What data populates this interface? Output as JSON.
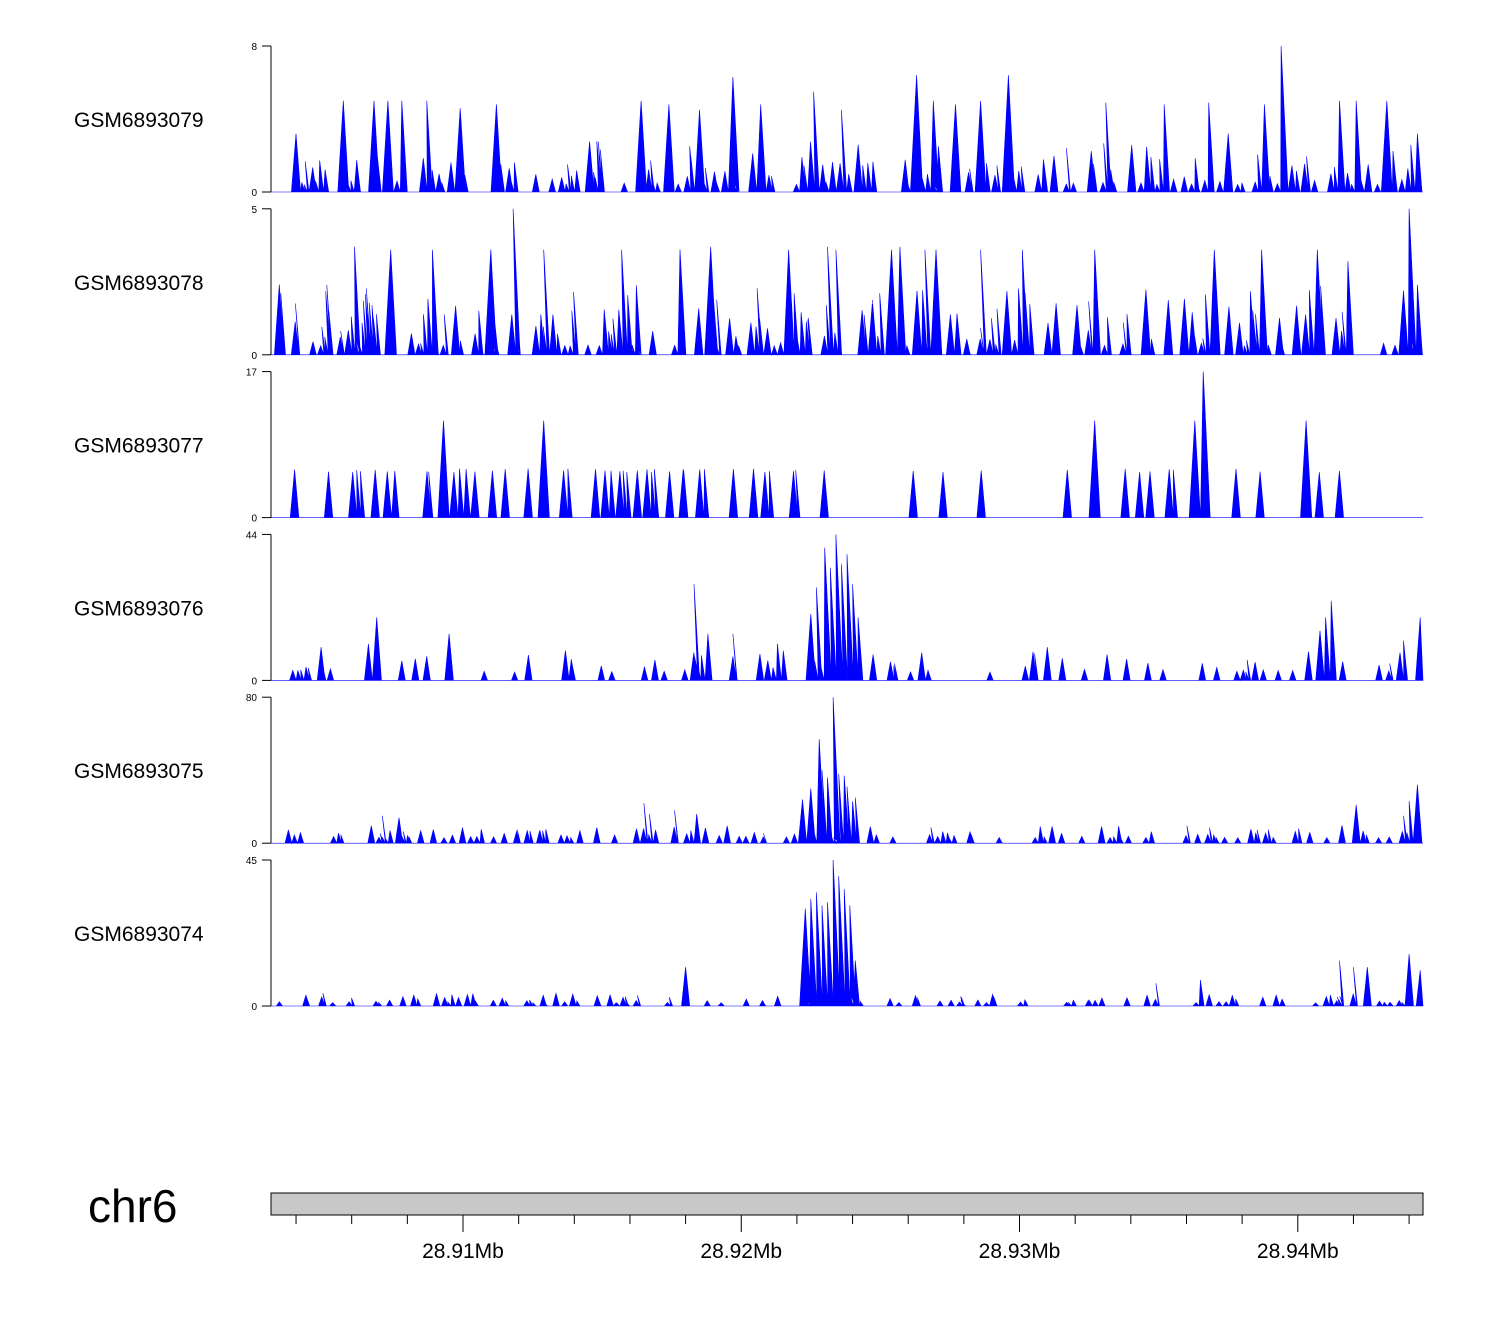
{
  "chart_data": {
    "type": "area",
    "title": "",
    "chromosome": "chr6",
    "xlim_mb": [
      28.9031,
      28.9445
    ],
    "x_ticks": [
      {
        "value": 28.91,
        "label": "28.91Mb"
      },
      {
        "value": 28.92,
        "label": "28.92Mb"
      },
      {
        "value": 28.93,
        "label": "28.93Mb"
      },
      {
        "value": 28.94,
        "label": "28.94Mb"
      }
    ],
    "minor_tick_step_mb": 0.002,
    "colors": {
      "fill": "#0000ff",
      "axis": "#000000",
      "ideogram": "#c8c8c8"
    },
    "tracks": [
      {
        "name": "GSM6893079",
        "ymax": 8,
        "ymin": 0,
        "ylim_labels": [
          "8",
          "0"
        ],
        "peaks": [
          [
            28.904,
            3.2
          ],
          [
            28.9057,
            5.0
          ],
          [
            28.9068,
            5.0
          ],
          [
            28.9073,
            5.0
          ],
          [
            28.9078,
            5.0
          ],
          [
            28.9087,
            5.0
          ],
          [
            28.9099,
            4.6
          ],
          [
            28.9112,
            4.8
          ],
          [
            28.9164,
            5.0
          ],
          [
            28.9174,
            4.8
          ],
          [
            28.9185,
            4.5
          ],
          [
            28.9197,
            6.3
          ],
          [
            28.9207,
            4.8
          ],
          [
            28.9226,
            5.5
          ],
          [
            28.9236,
            4.5
          ],
          [
            28.9263,
            6.4
          ],
          [
            28.9269,
            5.0
          ],
          [
            28.9277,
            4.8
          ],
          [
            28.9286,
            5.0
          ],
          [
            28.9296,
            6.4
          ],
          [
            28.9331,
            4.9
          ],
          [
            28.9352,
            4.8
          ],
          [
            28.9368,
            4.9
          ],
          [
            28.9375,
            3.2
          ],
          [
            28.9388,
            4.8
          ],
          [
            28.9394,
            8.0
          ],
          [
            28.9415,
            5.0
          ],
          [
            28.9421,
            5.0
          ],
          [
            28.9432,
            5.0
          ],
          [
            28.9443,
            3.2
          ]
        ],
        "base": {
          "seed": 11,
          "count": 140,
          "min": 0.4,
          "max": 2.8
        }
      },
      {
        "name": "GSM6893078",
        "ymax": 5,
        "ymin": 0,
        "ylim_labels": [
          "5",
          "0"
        ],
        "peaks": [
          [
            28.9034,
            2.4
          ],
          [
            28.9061,
            3.7
          ],
          [
            28.9074,
            3.6
          ],
          [
            28.9089,
            3.6
          ],
          [
            28.911,
            3.6
          ],
          [
            28.9118,
            5.0
          ],
          [
            28.9129,
            3.6
          ],
          [
            28.9157,
            3.6
          ],
          [
            28.9178,
            3.6
          ],
          [
            28.9189,
            3.7
          ],
          [
            28.9217,
            3.6
          ],
          [
            28.9231,
            3.7
          ],
          [
            28.9234,
            3.6
          ],
          [
            28.9254,
            3.6
          ],
          [
            28.9257,
            3.7
          ],
          [
            28.9266,
            3.6
          ],
          [
            28.927,
            3.6
          ],
          [
            28.9286,
            3.6
          ],
          [
            28.9301,
            3.6
          ],
          [
            28.9327,
            3.6
          ],
          [
            28.937,
            3.6
          ],
          [
            28.9387,
            3.6
          ],
          [
            28.9407,
            3.6
          ],
          [
            28.9418,
            3.2
          ],
          [
            28.944,
            5.0
          ],
          [
            28.9443,
            2.4
          ]
        ],
        "base": {
          "seed": 23,
          "count": 170,
          "min": 0.3,
          "max": 2.4
        }
      },
      {
        "name": "GSM6893077",
        "ymax": 17,
        "ymin": 0,
        "ylim_labels": [
          "17",
          "0"
        ],
        "peaks": [
          [
            28.9093,
            11.3
          ],
          [
            28.9129,
            11.3
          ],
          [
            28.9327,
            11.3
          ],
          [
            28.9363,
            11.3
          ],
          [
            28.9366,
            17.0
          ],
          [
            28.9403,
            11.3
          ]
        ],
        "base": {
          "seed": 37,
          "count": 55,
          "min": 5.3,
          "max": 5.7
        }
      },
      {
        "name": "GSM6893076",
        "ymax": 44,
        "ymin": 0,
        "ylim_labels": [
          "44",
          "0"
        ],
        "peaks": [
          [
            28.9049,
            10
          ],
          [
            28.9069,
            19
          ],
          [
            28.9066,
            11
          ],
          [
            28.9095,
            14
          ],
          [
            28.9183,
            29
          ],
          [
            28.9188,
            14
          ],
          [
            28.9197,
            14
          ],
          [
            28.9213,
            11
          ],
          [
            28.9225,
            20
          ],
          [
            28.9227,
            28
          ],
          [
            28.923,
            40
          ],
          [
            28.9232,
            34
          ],
          [
            28.9234,
            44
          ],
          [
            28.9236,
            35
          ],
          [
            28.9238,
            38
          ],
          [
            28.924,
            29
          ],
          [
            28.9242,
            19
          ],
          [
            28.931,
            10
          ],
          [
            28.9408,
            15
          ],
          [
            28.9412,
            24
          ],
          [
            28.941,
            19
          ],
          [
            28.9438,
            12
          ],
          [
            28.9444,
            19
          ]
        ],
        "base": {
          "seed": 41,
          "count": 70,
          "min": 2.5,
          "max": 9
        }
      },
      {
        "name": "GSM6893075",
        "ymax": 80,
        "ymin": 0,
        "ylim_labels": [
          "80",
          "0"
        ],
        "peaks": [
          [
            28.9071,
            15
          ],
          [
            28.9077,
            14
          ],
          [
            28.9165,
            22
          ],
          [
            28.9167,
            16
          ],
          [
            28.9176,
            18
          ],
          [
            28.9184,
            16
          ],
          [
            28.9222,
            24
          ],
          [
            28.9225,
            30
          ],
          [
            28.9228,
            57
          ],
          [
            28.9229,
            40
          ],
          [
            28.9231,
            36
          ],
          [
            28.9233,
            80
          ],
          [
            28.9235,
            38
          ],
          [
            28.9237,
            37
          ],
          [
            28.9238,
            31
          ],
          [
            28.924,
            23
          ],
          [
            28.9241,
            25
          ],
          [
            28.9421,
            21
          ],
          [
            28.9438,
            15
          ],
          [
            28.9443,
            32
          ],
          [
            28.944,
            23
          ]
        ],
        "base": {
          "seed": 53,
          "count": 120,
          "min": 3,
          "max": 10
        }
      },
      {
        "name": "GSM6893074",
        "ymax": 45,
        "ymin": 0,
        "ylim_labels": [
          "45",
          "0"
        ],
        "peaks": [
          [
            28.918,
            12
          ],
          [
            28.9223,
            30
          ],
          [
            28.9225,
            33
          ],
          [
            28.9227,
            35
          ],
          [
            28.9229,
            31
          ],
          [
            28.9231,
            32
          ],
          [
            28.9233,
            45
          ],
          [
            28.9235,
            40
          ],
          [
            28.9237,
            36
          ],
          [
            28.9239,
            31
          ],
          [
            28.9241,
            14
          ],
          [
            28.9349,
            7
          ],
          [
            28.9365,
            8
          ],
          [
            28.9415,
            14
          ],
          [
            28.942,
            12
          ],
          [
            28.9425,
            12
          ],
          [
            28.944,
            16
          ],
          [
            28.9444,
            11
          ]
        ],
        "base": {
          "seed": 67,
          "count": 110,
          "min": 1,
          "max": 4
        }
      }
    ]
  }
}
